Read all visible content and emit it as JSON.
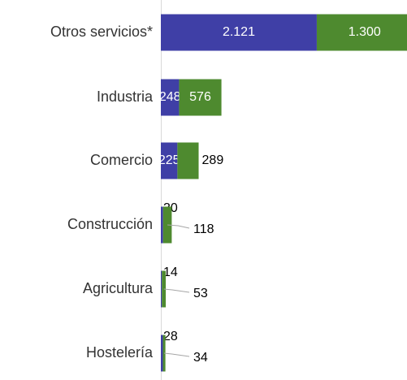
{
  "chart_data": {
    "type": "bar",
    "orientation": "horizontal",
    "stacked": true,
    "categories": [
      "Otros servicios*",
      "Industria",
      "Comercio",
      "Construcción",
      "Agricultura",
      "Hostelería"
    ],
    "series": [
      {
        "color": "#3f3fa6",
        "values": [
          2121,
          248,
          225,
          30,
          14,
          28
        ],
        "value_labels": [
          "2.121",
          "248",
          "225",
          "30",
          "14",
          "28"
        ]
      },
      {
        "color": "#4e8a2f",
        "values": [
          1300,
          576,
          289,
          118,
          53,
          34
        ],
        "value_labels": [
          "1.300",
          "576",
          "289",
          "118",
          "53",
          "34"
        ]
      }
    ]
  }
}
